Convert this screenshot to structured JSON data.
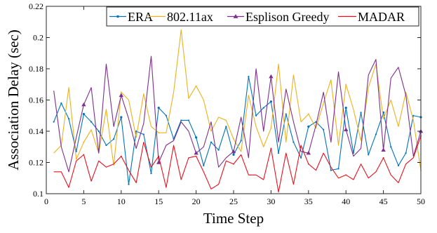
{
  "chart_data": {
    "type": "line",
    "xlabel": "Time Step",
    "ylabel": "Association Delay (sec)",
    "xlim": [
      0,
      50
    ],
    "ylim": [
      0.1,
      0.22
    ],
    "xticks": [
      0,
      5,
      10,
      15,
      20,
      25,
      30,
      35,
      40,
      45,
      50
    ],
    "yticks": [
      0.1,
      0.12,
      0.14,
      0.16,
      0.18,
      0.2,
      0.22
    ],
    "grid": false,
    "legend": "top, inside, horizontal",
    "x": [
      1,
      2,
      3,
      4,
      5,
      6,
      7,
      8,
      9,
      10,
      11,
      12,
      13,
      14,
      15,
      16,
      17,
      18,
      19,
      20,
      21,
      22,
      23,
      24,
      25,
      26,
      27,
      28,
      29,
      30,
      31,
      32,
      33,
      34,
      35,
      36,
      37,
      38,
      39,
      40,
      41,
      42,
      43,
      44,
      45,
      46,
      47,
      48,
      49,
      50
    ],
    "series": [
      {
        "name": "ERA",
        "color": "#0072BD",
        "marker": "dot",
        "values": [
          0.146,
          0.158,
          0.148,
          0.127,
          0.151,
          0.146,
          0.14,
          0.131,
          0.135,
          0.149,
          0.106,
          0.14,
          0.138,
          0.113,
          0.155,
          0.15,
          0.135,
          0.147,
          0.147,
          0.136,
          0.118,
          0.133,
          0.128,
          0.143,
          0.125,
          0.134,
          0.175,
          0.15,
          0.155,
          0.159,
          0.126,
          0.151,
          0.133,
          0.123,
          0.143,
          0.146,
          0.141,
          0.115,
          0.116,
          0.155,
          0.126,
          0.152,
          0.125,
          0.138,
          0.152,
          0.13,
          0.118,
          0.126,
          0.15,
          0.149
        ]
      },
      {
        "name": "802.11ax",
        "color": "#EDB120",
        "marker": "none",
        "values": [
          0.126,
          0.131,
          0.168,
          0.122,
          0.133,
          0.141,
          0.126,
          0.154,
          0.118,
          0.165,
          0.16,
          0.136,
          0.164,
          0.143,
          0.139,
          0.139,
          0.165,
          0.205,
          0.161,
          0.169,
          0.16,
          0.14,
          0.149,
          0.147,
          0.135,
          0.127,
          0.163,
          0.143,
          0.13,
          0.142,
          0.183,
          0.133,
          0.176,
          0.146,
          0.151,
          0.142,
          0.158,
          0.173,
          0.131,
          0.17,
          0.154,
          0.134,
          0.168,
          0.183,
          0.148,
          0.16,
          0.143,
          0.165,
          0.147,
          0.115
        ]
      },
      {
        "name": "Esplison Greedy",
        "color": "#7E2F8E",
        "marker": "triangle",
        "values": [
          0.166,
          0.13,
          0.114,
          0.136,
          0.157,
          0.168,
          0.126,
          0.183,
          0.143,
          0.163,
          0.148,
          0.129,
          0.145,
          0.188,
          0.12,
          0.131,
          0.134,
          0.146,
          0.14,
          0.126,
          0.13,
          0.146,
          0.117,
          0.123,
          0.127,
          0.149,
          0.123,
          0.18,
          0.14,
          0.175,
          0.133,
          0.167,
          0.146,
          0.127,
          0.126,
          0.144,
          0.165,
          0.133,
          0.178,
          0.141,
          0.124,
          0.129,
          0.176,
          0.186,
          0.128,
          0.174,
          0.181,
          0.163,
          0.124,
          0.14
        ]
      },
      {
        "name": "MADAR",
        "color": "#E8101D",
        "marker": "none",
        "values": [
          0.114,
          0.114,
          0.104,
          0.121,
          0.125,
          0.108,
          0.121,
          0.117,
          0.119,
          0.124,
          0.115,
          0.107,
          0.133,
          0.117,
          0.124,
          0.104,
          0.131,
          0.109,
          0.123,
          0.124,
          0.114,
          0.103,
          0.106,
          0.121,
          0.119,
          0.125,
          0.112,
          0.112,
          0.109,
          0.129,
          0.101,
          0.126,
          0.106,
          0.131,
          0.119,
          0.115,
          0.126,
          0.117,
          0.11,
          0.112,
          0.109,
          0.119,
          0.11,
          0.114,
          0.123,
          0.112,
          0.107,
          0.119,
          0.123,
          0.137
        ]
      }
    ]
  }
}
